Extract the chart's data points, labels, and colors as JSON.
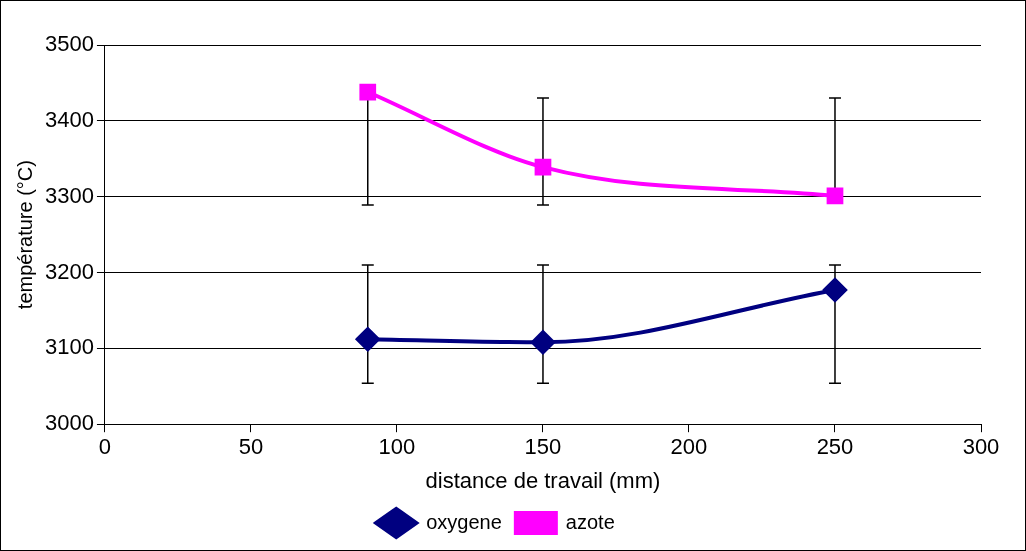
{
  "chart_data": {
    "type": "line",
    "xlabel": "distance de travail (mm)",
    "ylabel": "température (°C)",
    "x": [
      90,
      150,
      250
    ],
    "series": [
      {
        "name": "oxygene",
        "color": "#000080",
        "marker": "diamond",
        "values": [
          3112,
          3108,
          3177
        ],
        "errors": [
          [
            3054,
            3210
          ],
          [
            3054,
            3210
          ],
          [
            3054,
            3210
          ]
        ]
      },
      {
        "name": "azote",
        "color": "#ff00ff",
        "marker": "square",
        "values": [
          3438,
          3339,
          3301
        ],
        "errors": [
          [
            3289,
            3430
          ],
          [
            3289,
            3430
          ],
          [
            3300,
            3430
          ]
        ]
      }
    ],
    "xlim": [
      0,
      300
    ],
    "xticks": [
      0,
      50,
      100,
      150,
      200,
      250,
      300
    ],
    "ylim": [
      3000,
      3500
    ],
    "yticks": [
      3000,
      3100,
      3200,
      3300,
      3400,
      3500
    ],
    "grid": "y",
    "legend": "bottom"
  }
}
